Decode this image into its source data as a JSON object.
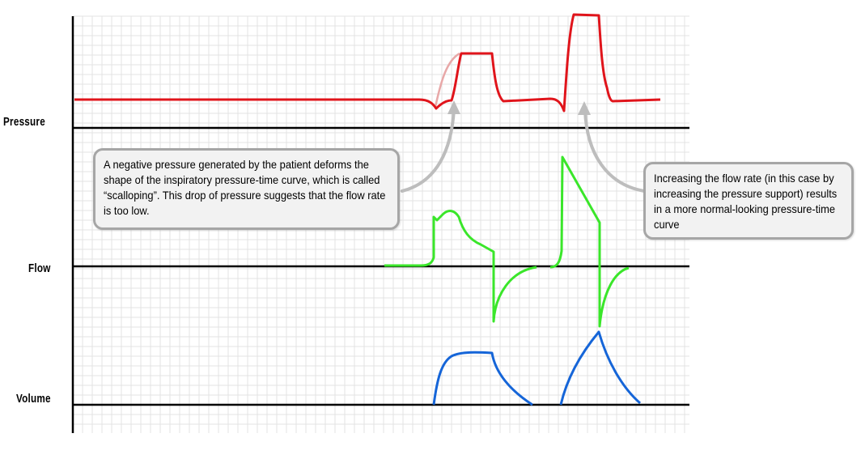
{
  "labels": {
    "pressure": "Pressure",
    "flow": "Flow",
    "volume": "Volume"
  },
  "callouts": {
    "left": "A negative pressure generated by the patient deforms the shape of the inspiratory pressure-time curve, which is called “scalloping”. This drop of pressure suggests that the flow rate is too low.",
    "right": "Increasing the flow rate (in this case by increasing the pressure support) results in a more normal-looking pressure-time curve"
  },
  "colors": {
    "pressure": "#e0141b",
    "pressure_ideal": "#e8a8a8",
    "flow": "#3ae62a",
    "volume": "#1565d8",
    "grid": "#e3e3e3",
    "axis": "#000000",
    "callout_fill": "#f2f2f2",
    "callout_border": "#a6a6a6",
    "arrow": "#bdbdbd"
  }
}
